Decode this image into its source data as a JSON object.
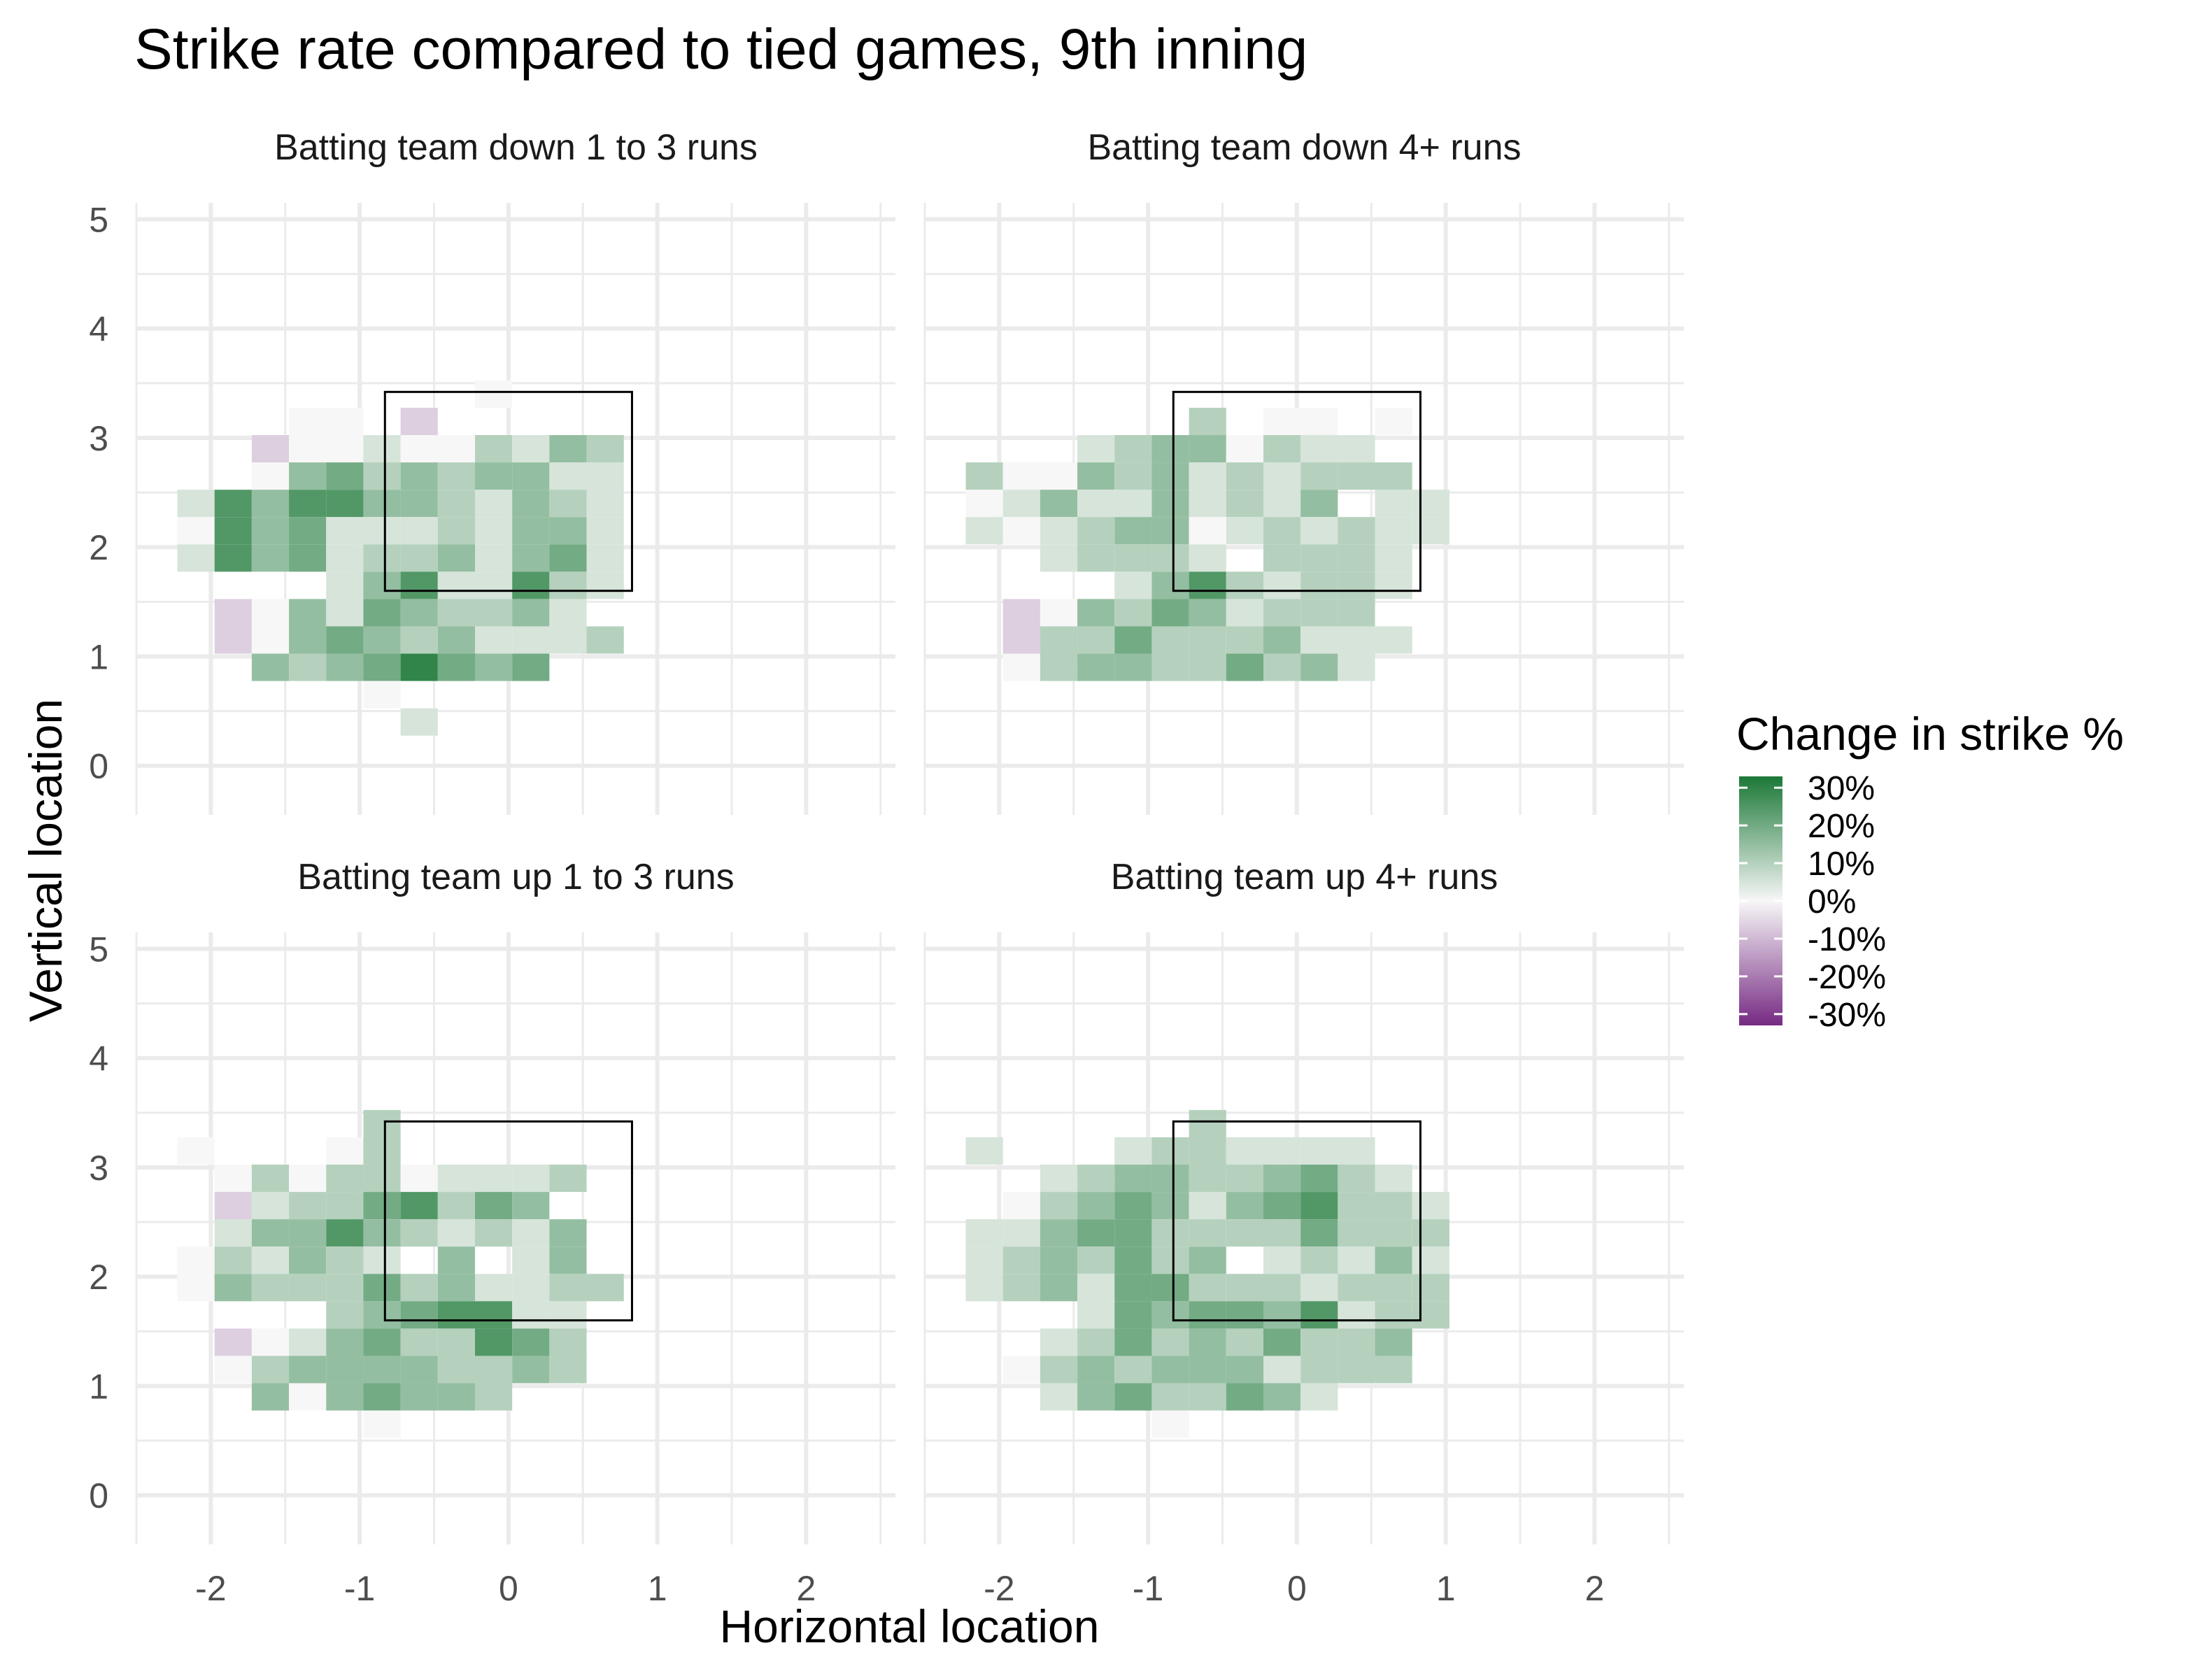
{
  "chart_data": {
    "type": "heatmap",
    "title": "Strike rate compared to tied games, 9th inning",
    "xlabel": "Horizontal location",
    "ylabel": "Vertical location",
    "xlim": [
      -2.5,
      2.6
    ],
    "ylim": [
      -0.45,
      5.15
    ],
    "x_ticks": [
      "-2",
      "-1",
      "0",
      "1",
      "2"
    ],
    "y_ticks": [
      "0",
      "1",
      "2",
      "3",
      "4",
      "5"
    ],
    "strike_zone": {
      "x": [
        -0.83,
        0.83
      ],
      "y": [
        1.6,
        3.42
      ]
    },
    "cell": {
      "x0": -2.35,
      "y0": 0.4,
      "dx": 0.25,
      "dy": 0.25
    },
    "legend": {
      "title": "Change in strike %",
      "labels": [
        "30%",
        "20%",
        "10%",
        "0%",
        "-10%",
        "-20%",
        "-30%"
      ],
      "values": [
        30,
        20,
        10,
        0,
        -10,
        -20,
        -30
      ],
      "high_color": "#1b7837",
      "mid_color": "#f7f7f7",
      "low_color": "#762a83"
    },
    "panels": [
      {
        "name": "Batting team down 1 to 3 runs",
        "rows": [
          "..............",
          "..............",
          ".........1....",
          "....11.0......",
          "...0112113243.",
          "...1453434422.",
          ".264664432432.",
          ".164522232442.",
          ".264523342452.",
          ".....24622632.",
          "..0142543342..",
          "..01454342223.",
          "...43457545...",
          "......1.......",
          ".......2......"
        ]
      },
      {
        "name": "Batting team down 4+ runs",
        "rows": [
          "..............",
          "..............",
          "..............",
          ".......3.11.1.",
          "....23441322..",
          ".311434232333.",
          ".1242242324.22",
          ".2123441232322",
          "...23332.3332.",
          ".....24632332.",
          "..0143542333..",
          "..03353334222.",
          "..1344335342..",
          "..............",
          "..............."
        ]
      },
      {
        "name": "Batting team up 1 to 3 runs",
        "rows": [
          "..............",
          "..............",
          "......3.......",
          ".1...13.......",
          "..1313312223..",
          "..023356354...",
          "..2446432324..",
          ".132432.4.24..",
          ".143335342233.",
          ".....3456622..",
          "..0124533653..",
          "..1344443343..",
          "...4145443....",
          "......1.......",
          "..............."
        ]
      },
      {
        "name": "Batting team up 4+ runs",
        "rows": [
          "..............",
          "..............",
          ".......3......",
          ".2...2332222..",
          "...2344334532.",
          "..134542456332",
          ".2245533335333",
          ".2343534.23242",
          ".2342553332333",
          "....2545546233",
          "...2353435334.",
          "..13434442333.",
          "...24533542...",
          "......1.......",
          "..............."
        ]
      }
    ]
  }
}
